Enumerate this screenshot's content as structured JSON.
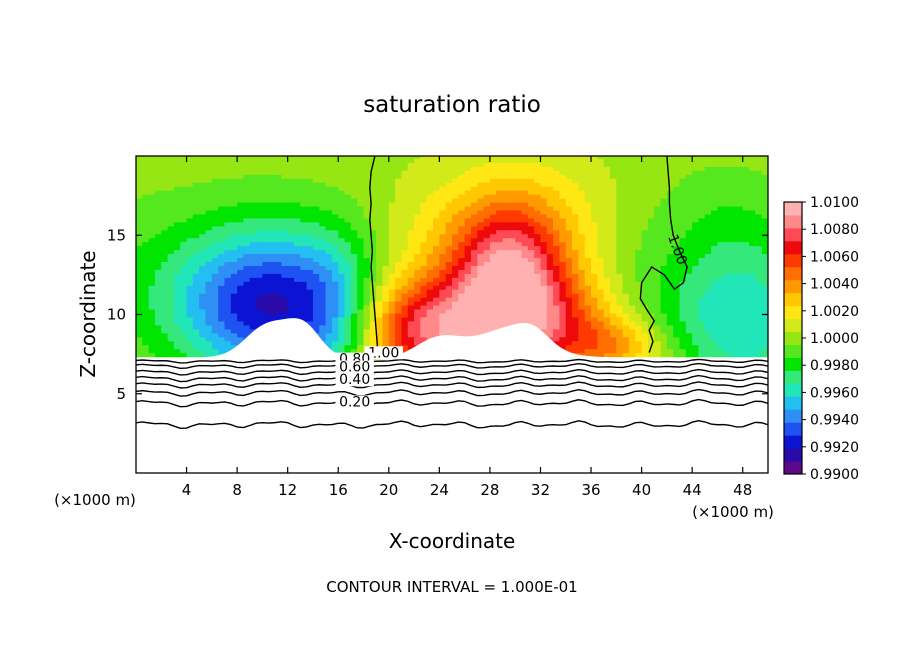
{
  "chart_data": {
    "type": "heatmap",
    "title": "saturation ratio",
    "xlabel": "X-coordinate",
    "ylabel": "Z-coordinate",
    "x_unit_left": "(×1000 m)",
    "x_unit_right": "(×1000 m)",
    "footer": "CONTOUR INTERVAL = 1.000E-01",
    "xlim": [
      0,
      50
    ],
    "ylim": [
      0,
      20
    ],
    "x_ticks": [
      4,
      8,
      12,
      16,
      20,
      24,
      28,
      32,
      36,
      40,
      44,
      48
    ],
    "y_ticks": [
      5,
      10,
      15
    ],
    "colorbar": {
      "min": 0.99,
      "max": 1.01,
      "tick_labels": [
        "1.0100",
        "1.0080",
        "1.0060",
        "1.0040",
        "1.0020",
        "1.0000",
        "0.9980",
        "0.9960",
        "0.9940",
        "0.9920",
        "0.9900"
      ],
      "colors": [
        "#5c0a8a",
        "#2a0aa8",
        "#0a14d2",
        "#1f52f2",
        "#2f8ff5",
        "#22bff0",
        "#20e6b8",
        "#35e87c",
        "#00e600",
        "#55e81e",
        "#96e614",
        "#d2ea1a",
        "#ffe714",
        "#ffc800",
        "#ff9b00",
        "#ff6e00",
        "#ff3a00",
        "#ee0a0a",
        "#ff4a55",
        "#ff8888",
        "#ffb0b0"
      ]
    },
    "contour_labels": [
      {
        "text": "1.00",
        "x": 19.6,
        "y": 7.3
      },
      {
        "text": "1.00",
        "x": 42.5,
        "y": 14.0
      },
      {
        "text": "0.80",
        "x": 17.3,
        "y": 6.9
      },
      {
        "text": "0.60",
        "x": 17.3,
        "y": 6.4
      },
      {
        "text": "0.40",
        "x": 17.3,
        "y": 5.6
      },
      {
        "text": "0.20",
        "x": 17.3,
        "y": 4.2
      }
    ],
    "grid": false
  }
}
